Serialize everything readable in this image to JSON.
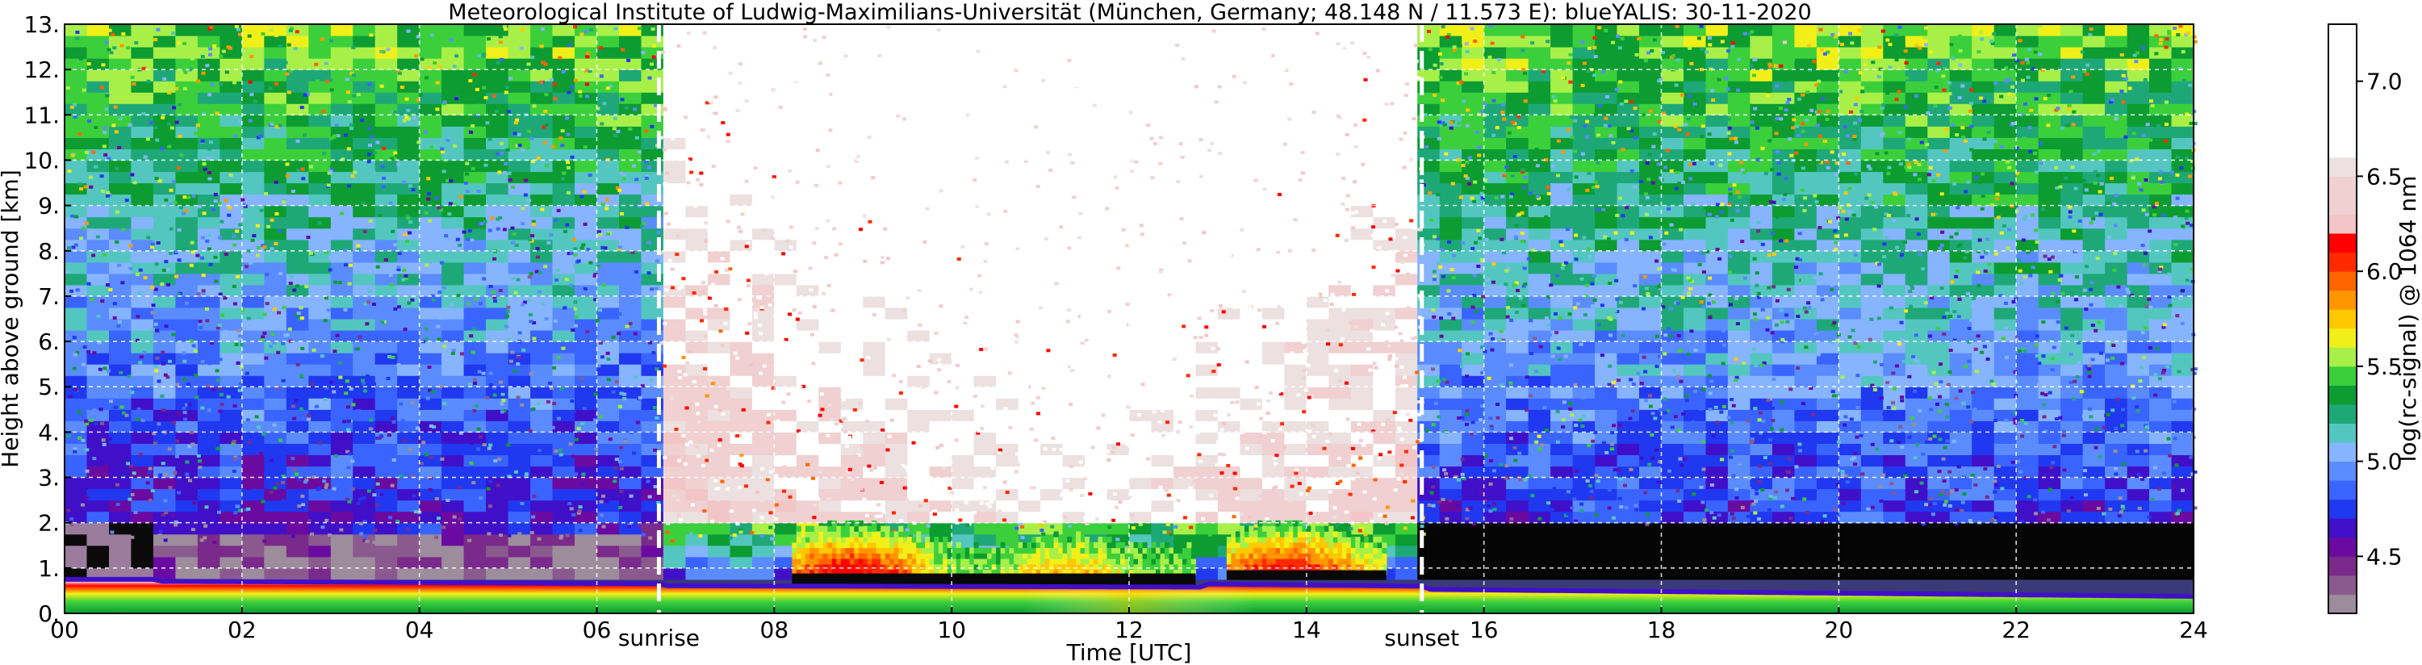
{
  "chart_data": {
    "type": "heatmap",
    "title": "Meteorological Institute of Ludwig-Maximilians-Universität (München, Germany; 48.148 N / 11.573 E):    blueYALIS: 30-11-2020",
    "xlabel": "Time [UTC]",
    "ylabel": "Height above ground [km]",
    "xlim": [
      0,
      24
    ],
    "ylim": [
      0,
      13
    ],
    "x_ticks": [
      {
        "value": 0,
        "label": "00"
      },
      {
        "value": 2,
        "label": "02"
      },
      {
        "value": 4,
        "label": "04"
      },
      {
        "value": 6,
        "label": "06"
      },
      {
        "value": 8,
        "label": "08"
      },
      {
        "value": 10,
        "label": "10"
      },
      {
        "value": 12,
        "label": "12"
      },
      {
        "value": 14,
        "label": "14"
      },
      {
        "value": 16,
        "label": "16"
      },
      {
        "value": 18,
        "label": "18"
      },
      {
        "value": 20,
        "label": "20"
      },
      {
        "value": 22,
        "label": "22"
      },
      {
        "value": 24,
        "label": "24"
      }
    ],
    "y_ticks": [
      {
        "value": 0,
        "label": "0."
      },
      {
        "value": 1,
        "label": "1."
      },
      {
        "value": 2,
        "label": "2."
      },
      {
        "value": 3,
        "label": "3."
      },
      {
        "value": 4,
        "label": "4."
      },
      {
        "value": 5,
        "label": "5."
      },
      {
        "value": 6,
        "label": "6."
      },
      {
        "value": 7,
        "label": "7."
      },
      {
        "value": 8,
        "label": "8."
      },
      {
        "value": 9,
        "label": "9."
      },
      {
        "value": 10,
        "label": "10."
      },
      {
        "value": 11,
        "label": "11."
      },
      {
        "value": 12,
        "label": "12."
      },
      {
        "value": 13,
        "label": "13."
      }
    ],
    "grid": true,
    "markers": [
      {
        "name": "sunrise",
        "x": 6.7,
        "label": "sunrise"
      },
      {
        "name": "sunset",
        "x": 15.3,
        "label": "sunset"
      }
    ],
    "colorbar": {
      "label": "log(rc-signal) @ 1064 nm",
      "range": [
        4.2,
        7.3
      ],
      "ticks": [
        {
          "value": 4.5,
          "label": "4.5"
        },
        {
          "value": 5.0,
          "label": "5.0"
        },
        {
          "value": 5.5,
          "label": "5.5"
        },
        {
          "value": 6.0,
          "label": "6.0"
        },
        {
          "value": 6.5,
          "label": "6.5"
        },
        {
          "value": 7.0,
          "label": "7.0"
        }
      ],
      "colors": [
        {
          "from": 4.2,
          "to": 4.3,
          "color": "#9c8c9c"
        },
        {
          "from": 4.3,
          "to": 4.4,
          "color": "#8a5a8f"
        },
        {
          "from": 4.4,
          "to": 4.5,
          "color": "#7a2a8a"
        },
        {
          "from": 4.5,
          "to": 4.6,
          "color": "#6a0aa0"
        },
        {
          "from": 4.6,
          "to": 4.7,
          "color": "#4010c8"
        },
        {
          "from": 4.7,
          "to": 4.8,
          "color": "#2038f0"
        },
        {
          "from": 4.8,
          "to": 4.9,
          "color": "#3a64ff"
        },
        {
          "from": 4.9,
          "to": 5.0,
          "color": "#5a8cff"
        },
        {
          "from": 5.0,
          "to": 5.1,
          "color": "#86b4ff"
        },
        {
          "from": 5.1,
          "to": 5.2,
          "color": "#54c6c0"
        },
        {
          "from": 5.2,
          "to": 5.3,
          "color": "#1ea878"
        },
        {
          "from": 5.3,
          "to": 5.4,
          "color": "#0c9c32"
        },
        {
          "from": 5.4,
          "to": 5.5,
          "color": "#3ccf3c"
        },
        {
          "from": 5.5,
          "to": 5.6,
          "color": "#a8f048"
        },
        {
          "from": 5.6,
          "to": 5.7,
          "color": "#f0f018"
        },
        {
          "from": 5.7,
          "to": 5.8,
          "color": "#ffc800"
        },
        {
          "from": 5.8,
          "to": 5.9,
          "color": "#ff9600"
        },
        {
          "from": 5.9,
          "to": 6.0,
          "color": "#ff6400"
        },
        {
          "from": 6.0,
          "to": 6.1,
          "color": "#ff2a00"
        },
        {
          "from": 6.1,
          "to": 6.2,
          "color": "#ff0000"
        },
        {
          "from": 6.2,
          "to": 6.3,
          "color": "#f2c6c6"
        },
        {
          "from": 6.3,
          "to": 6.5,
          "color": "#f0d0d0"
        },
        {
          "from": 6.5,
          "to": 6.6,
          "color": "#ece0e0"
        },
        {
          "from": 6.6,
          "to": 7.3,
          "color": "#ffffff"
        }
      ]
    },
    "regions": [
      {
        "name": "background-noise-before-sunrise",
        "x": [
          0,
          6.7
        ],
        "y": [
          0.75,
          13
        ],
        "value_low": 4.5,
        "value_high": 5.6
      },
      {
        "name": "daytime-noise",
        "x": [
          6.7,
          15.3
        ],
        "y": [
          1.6,
          13
        ],
        "value_low": 5.9,
        "value_high": 7.0
      },
      {
        "name": "daytime-cloud-layer",
        "x": [
          8.2,
          14.9
        ],
        "y": [
          0.85,
          1.8
        ],
        "value_low": 5.2,
        "value_high": 6.1
      },
      {
        "name": "no-signal-night",
        "x": [
          15.3,
          24
        ],
        "y": [
          0.5,
          2.0
        ],
        "value_low": 4.2,
        "value_high": 4.2
      },
      {
        "name": "background-noise-after-sunset",
        "x": [
          15.3,
          24
        ],
        "y": [
          2.0,
          13
        ],
        "value_low": 4.6,
        "value_high": 5.6
      },
      {
        "name": "boundary-layer",
        "x": [
          0,
          24
        ],
        "y": [
          0,
          0.7
        ],
        "value_low": 5.3,
        "value_high": 6.6
      }
    ]
  }
}
